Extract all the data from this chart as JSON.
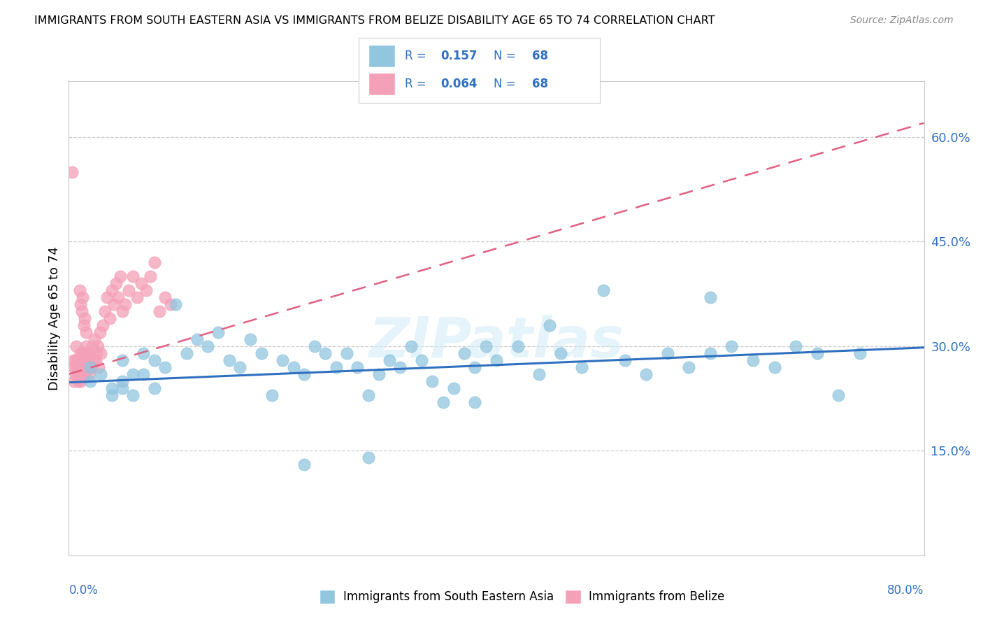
{
  "title": "IMMIGRANTS FROM SOUTH EASTERN ASIA VS IMMIGRANTS FROM BELIZE DISABILITY AGE 65 TO 74 CORRELATION CHART",
  "source": "Source: ZipAtlas.com",
  "ylabel": "Disability Age 65 to 74",
  "y_ticks": [
    0.15,
    0.3,
    0.45,
    0.6
  ],
  "y_tick_labels": [
    "15.0%",
    "30.0%",
    "45.0%",
    "60.0%"
  ],
  "x_lim": [
    0.0,
    0.8
  ],
  "y_lim": [
    0.0,
    0.68
  ],
  "r_blue": "0.157",
  "n_blue": "68",
  "r_pink": "0.064",
  "n_pink": "68",
  "blue_color": "#92c5de",
  "pink_color": "#f4a0b8",
  "blue_line_color": "#3070c0",
  "pink_line_color": "#e06080",
  "tick_label_color": "#3070c0",
  "legend_label_blue": "Immigrants from South Eastern Asia",
  "legend_label_pink": "Immigrants from Belize",
  "blue_scatter_x": [
    0.02,
    0.02,
    0.03,
    0.04,
    0.04,
    0.05,
    0.05,
    0.05,
    0.06,
    0.06,
    0.07,
    0.07,
    0.08,
    0.08,
    0.09,
    0.1,
    0.11,
    0.12,
    0.13,
    0.14,
    0.15,
    0.16,
    0.17,
    0.18,
    0.19,
    0.2,
    0.21,
    0.22,
    0.23,
    0.24,
    0.25,
    0.26,
    0.27,
    0.28,
    0.29,
    0.3,
    0.31,
    0.32,
    0.33,
    0.34,
    0.35,
    0.36,
    0.37,
    0.38,
    0.39,
    0.4,
    0.42,
    0.44,
    0.46,
    0.48,
    0.5,
    0.52,
    0.54,
    0.56,
    0.58,
    0.6,
    0.62,
    0.64,
    0.66,
    0.68,
    0.7,
    0.72,
    0.74,
    0.6,
    0.45,
    0.38,
    0.28,
    0.22
  ],
  "blue_scatter_y": [
    0.27,
    0.25,
    0.26,
    0.24,
    0.23,
    0.25,
    0.28,
    0.24,
    0.26,
    0.23,
    0.29,
    0.26,
    0.28,
    0.24,
    0.27,
    0.36,
    0.29,
    0.31,
    0.3,
    0.32,
    0.28,
    0.27,
    0.31,
    0.29,
    0.23,
    0.28,
    0.27,
    0.26,
    0.3,
    0.29,
    0.27,
    0.29,
    0.27,
    0.23,
    0.26,
    0.28,
    0.27,
    0.3,
    0.28,
    0.25,
    0.22,
    0.24,
    0.29,
    0.27,
    0.3,
    0.28,
    0.3,
    0.26,
    0.29,
    0.27,
    0.38,
    0.28,
    0.26,
    0.29,
    0.27,
    0.29,
    0.3,
    0.28,
    0.27,
    0.3,
    0.29,
    0.23,
    0.29,
    0.37,
    0.33,
    0.22,
    0.14,
    0.13
  ],
  "pink_scatter_x": [
    0.004,
    0.005,
    0.005,
    0.006,
    0.006,
    0.007,
    0.007,
    0.008,
    0.008,
    0.009,
    0.009,
    0.01,
    0.01,
    0.011,
    0.011,
    0.012,
    0.012,
    0.013,
    0.013,
    0.014,
    0.014,
    0.015,
    0.015,
    0.016,
    0.016,
    0.017,
    0.018,
    0.019,
    0.02,
    0.021,
    0.022,
    0.023,
    0.024,
    0.025,
    0.026,
    0.027,
    0.028,
    0.029,
    0.03,
    0.032,
    0.034,
    0.036,
    0.038,
    0.04,
    0.042,
    0.044,
    0.046,
    0.048,
    0.05,
    0.053,
    0.056,
    0.06,
    0.064,
    0.068,
    0.072,
    0.076,
    0.08,
    0.085,
    0.09,
    0.095,
    0.01,
    0.011,
    0.012,
    0.013,
    0.014,
    0.015,
    0.016,
    0.003
  ],
  "pink_scatter_y": [
    0.28,
    0.27,
    0.25,
    0.28,
    0.26,
    0.3,
    0.27,
    0.28,
    0.26,
    0.27,
    0.25,
    0.27,
    0.26,
    0.29,
    0.25,
    0.29,
    0.27,
    0.28,
    0.26,
    0.27,
    0.29,
    0.28,
    0.26,
    0.3,
    0.27,
    0.29,
    0.28,
    0.26,
    0.29,
    0.27,
    0.3,
    0.28,
    0.31,
    0.28,
    0.29,
    0.3,
    0.27,
    0.32,
    0.29,
    0.33,
    0.35,
    0.37,
    0.34,
    0.38,
    0.36,
    0.39,
    0.37,
    0.4,
    0.35,
    0.36,
    0.38,
    0.4,
    0.37,
    0.39,
    0.38,
    0.4,
    0.42,
    0.35,
    0.37,
    0.36,
    0.38,
    0.36,
    0.35,
    0.37,
    0.33,
    0.34,
    0.32,
    0.55
  ],
  "blue_trend_x0": 0.0,
  "blue_trend_y0": 0.248,
  "blue_trend_x1": 0.8,
  "blue_trend_y1": 0.298,
  "pink_trend_x0": 0.0,
  "pink_trend_y0": 0.26,
  "pink_trend_x1": 0.8,
  "pink_trend_y1": 0.62
}
